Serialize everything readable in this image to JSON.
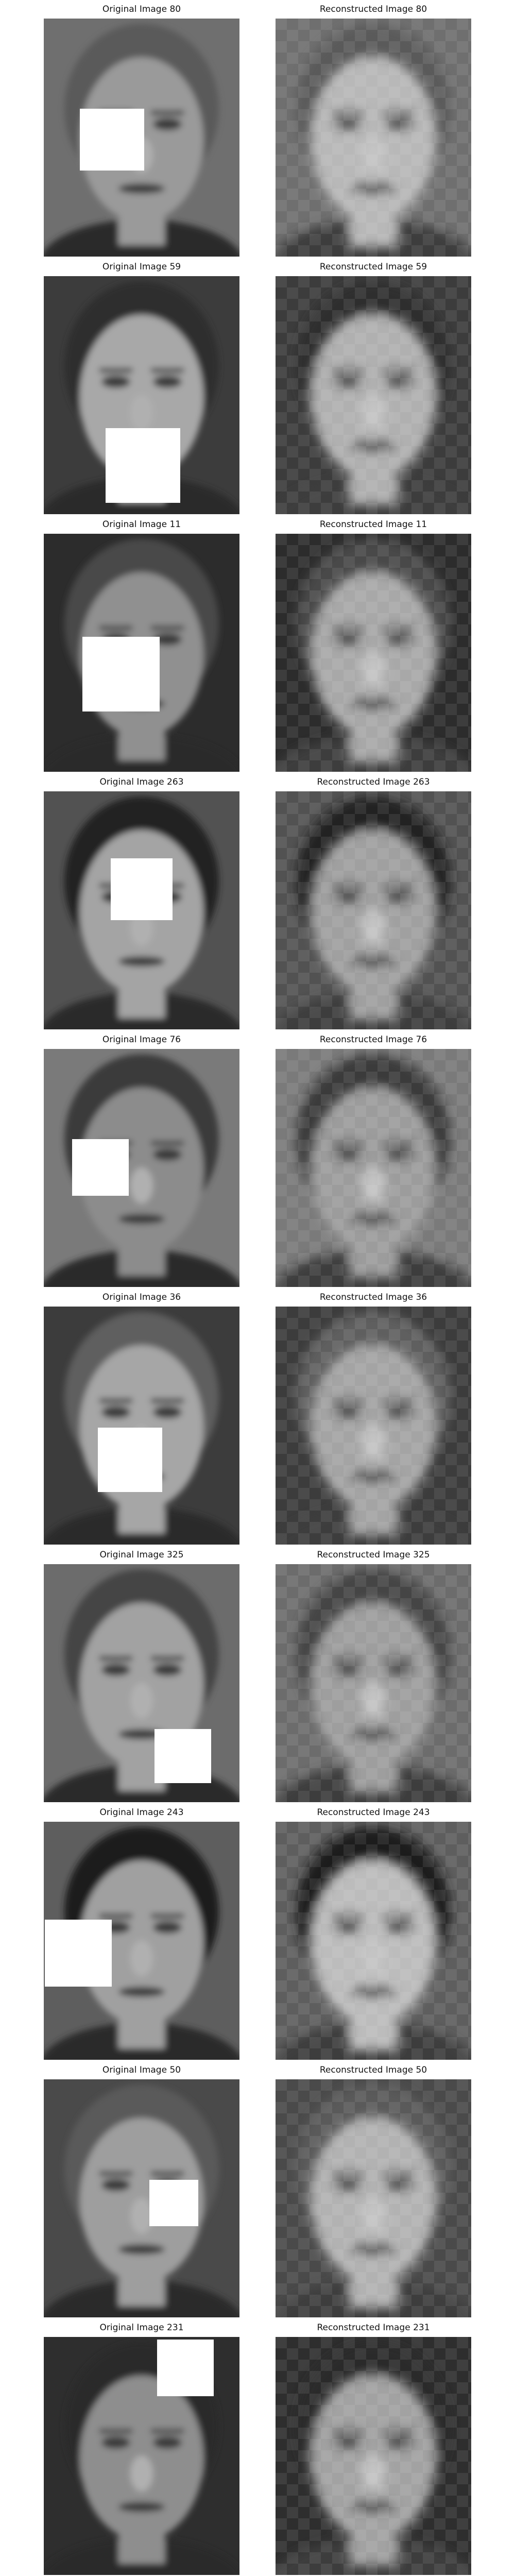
{
  "pairs": [
    {
      "original_title": "Original Image 80",
      "reconstructed_title": "Reconstructed Image 80",
      "bg": "#6f6f6f",
      "hair": "#5a5a5a",
      "skin": "#9a9a9a",
      "recon_skin": "#b8b8b8",
      "occlusion": "upper-middle"
    },
    {
      "original_title": "Original Image 59",
      "reconstructed_title": "Reconstructed Image 59",
      "bg": "#3c3c3c",
      "hair": "#2e2e2e",
      "skin": "#a8a8a8",
      "recon_skin": "#b0b0b0",
      "occlusion": "lower-middle"
    },
    {
      "original_title": "Original Image 11",
      "reconstructed_title": "Reconstructed Image 11",
      "bg": "#2c2c2c",
      "hair": "#4a4a4a",
      "skin": "#909090",
      "recon_skin": "#a8a8a8",
      "occlusion": "lower-left"
    },
    {
      "original_title": "Original Image 263",
      "reconstructed_title": "Reconstructed Image 263",
      "bg": "#525252",
      "hair": "#222222",
      "skin": "#a4a4a4",
      "recon_skin": "#a0a0a0",
      "occlusion": "upper-middle-right"
    },
    {
      "original_title": "Original Image 76",
      "reconstructed_title": "Reconstructed Image 76",
      "bg": "#7a7a7a",
      "hair": "#3a3a3a",
      "skin": "#8c8c8c",
      "recon_skin": "#9c9c9c",
      "occlusion": "lower-left"
    },
    {
      "original_title": "Original Image 36",
      "reconstructed_title": "Reconstructed Image 36",
      "bg": "#3c3c3c",
      "hair": "#5e5e5e",
      "skin": "#a6a6a6",
      "recon_skin": "#a4a4a4",
      "occlusion": "lower-middle"
    },
    {
      "original_title": "Original Image 325",
      "reconstructed_title": "Reconstructed Image 325",
      "bg": "#6c6c6c",
      "hair": "#444444",
      "skin": "#a2a2a2",
      "recon_skin": "#9e9e9e",
      "occlusion": "lower-right"
    },
    {
      "original_title": "Original Image 243",
      "reconstructed_title": "Reconstructed Image 243",
      "bg": "#5e5e5e",
      "hair": "#1e1e1e",
      "skin": "#a0a0a0",
      "recon_skin": "#bcbcbc",
      "occlusion": "middle-left"
    },
    {
      "original_title": "Original Image 50",
      "reconstructed_title": "Reconstructed Image 50",
      "bg": "#4a4a4a",
      "hair": "#5a5a5a",
      "skin": "#9e9e9e",
      "recon_skin": "#b2b2b2",
      "occlusion": "middle-right"
    },
    {
      "original_title": "Original Image 231",
      "reconstructed_title": "Reconstructed Image 231",
      "bg": "#2e2e2e",
      "hair": "#2a2a2a",
      "skin": "#8e8e8e",
      "recon_skin": "#a2a2a2",
      "occlusion": "top-right"
    }
  ]
}
